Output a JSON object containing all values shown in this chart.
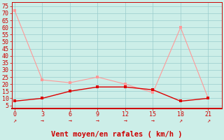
{
  "x": [
    0,
    3,
    6,
    9,
    12,
    15,
    18,
    21
  ],
  "line1_y": [
    72,
    23,
    21,
    25,
    20,
    14,
    60,
    10
  ],
  "line2_y": [
    8,
    10,
    15,
    18,
    18,
    16,
    8,
    10
  ],
  "line1_color": "#ff9999",
  "line2_color": "#dd0000",
  "bg_color": "#cceee8",
  "grid_color": "#99cccc",
  "xlabel": "Vent moyen/en rafales ( km/h )",
  "xlabel_color": "#cc0000",
  "xlabel_fontsize": 7.5,
  "tick_color": "#cc0000",
  "tick_fontsize": 6,
  "yticks": [
    5,
    10,
    15,
    20,
    25,
    30,
    35,
    40,
    45,
    50,
    55,
    60,
    65,
    70,
    75
  ],
  "xticks": [
    0,
    3,
    6,
    9,
    12,
    15,
    18,
    21
  ],
  "ylim": [
    3,
    78
  ],
  "xlim": [
    -0.3,
    22.5
  ],
  "arrow_color": "#cc0000",
  "arrow_symbols": [
    "↗",
    "→",
    "→",
    "→",
    "→",
    "→",
    "↗",
    "↗"
  ],
  "bottom_line_color": "#cc0000",
  "marker_size": 2.5
}
